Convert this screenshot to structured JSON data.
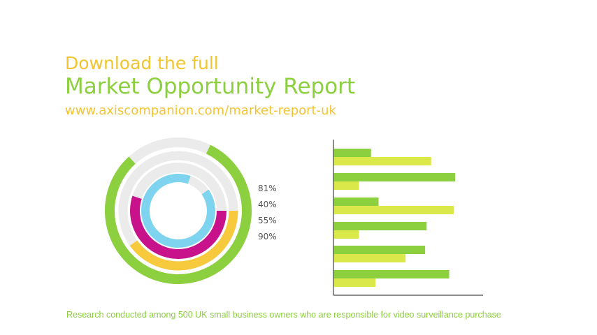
{
  "heading": {
    "line1": "Download the full",
    "line2": "Market Opportunity Report",
    "url": "www.axiscompanion.com/market-report-uk"
  },
  "footnote": "Research conducted among 500 UK small business owners who are responsible for video surveillance purchase",
  "chart_data": [
    {
      "type": "radial-bar",
      "rings": [
        {
          "label": "81%",
          "value": 81,
          "color": "#8ccf3f"
        },
        {
          "label": "40%",
          "value": 40,
          "color": "#f7c93c"
        },
        {
          "label": "55%",
          "value": 55,
          "color": "#c8128c"
        },
        {
          "label": "90%",
          "value": 90,
          "color": "#7ed3ef"
        }
      ],
      "track_color": "#ebebeb"
    },
    {
      "type": "bar",
      "orientation": "horizontal",
      "xlim": [
        0,
        100
      ],
      "series": [
        {
          "values": [
            25,
            81,
            30,
            62,
            61,
            77
          ],
          "color": "#8ccf3f"
        },
        {
          "values": [
            65,
            17,
            80,
            17,
            48,
            28
          ],
          "color": "#dbe84a"
        }
      ]
    }
  ]
}
